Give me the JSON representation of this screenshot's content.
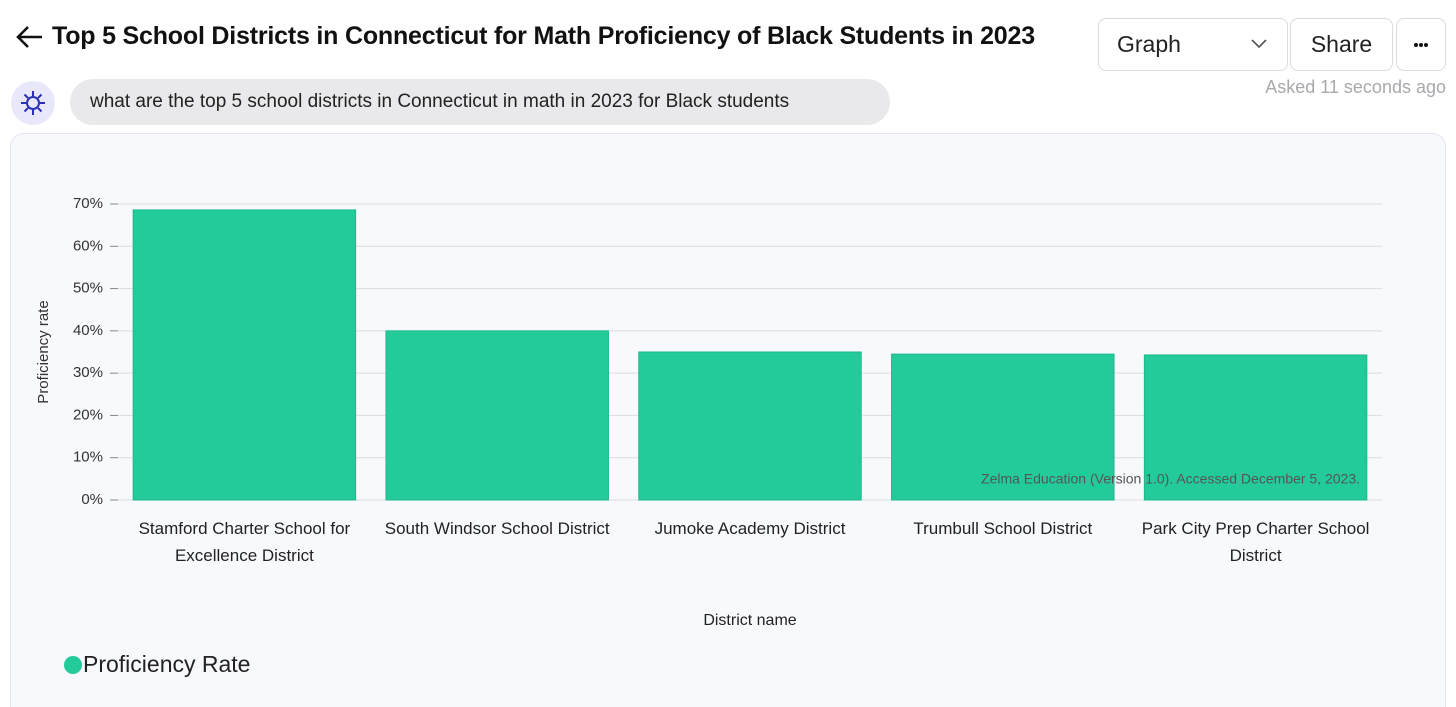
{
  "header": {
    "title": "Top 5 School Districts in Connecticut for Math Proficiency of Black Students in 2023",
    "view_select": "Graph",
    "share_button": "Share",
    "asked": "Asked 11 seconds ago"
  },
  "query": "what are the top 5 school districts in Connecticut in math in 2023 for Black students",
  "chart_data": {
    "type": "bar",
    "x_label": "District name",
    "y_label": "Proficiency rate",
    "source": "Zelma Education (Version 1.0). Accessed December 5, 2023.",
    "categories": [
      "Stamford Charter School for Excellence District",
      "South Windsor School District",
      "Jumoke Academy District",
      "Trumbull School District",
      "Park City Prep Charter School District"
    ],
    "series": [
      {
        "name": "Proficiency Rate",
        "color": "#23cb9b",
        "values": [
          68.6,
          40.0,
          35.0,
          34.5,
          34.3
        ]
      }
    ],
    "ylim": [
      0,
      70
    ],
    "yticks": [
      {
        "value": 0,
        "label": "0%"
      },
      {
        "value": 10,
        "label": "10%"
      },
      {
        "value": 20,
        "label": "20%"
      },
      {
        "value": 30,
        "label": "30%"
      },
      {
        "value": 40,
        "label": "40%"
      },
      {
        "value": 50,
        "label": "50%"
      },
      {
        "value": 60,
        "label": "60%"
      },
      {
        "value": 70,
        "label": "70%"
      }
    ],
    "grid": true,
    "legend": "bottom-left"
  }
}
